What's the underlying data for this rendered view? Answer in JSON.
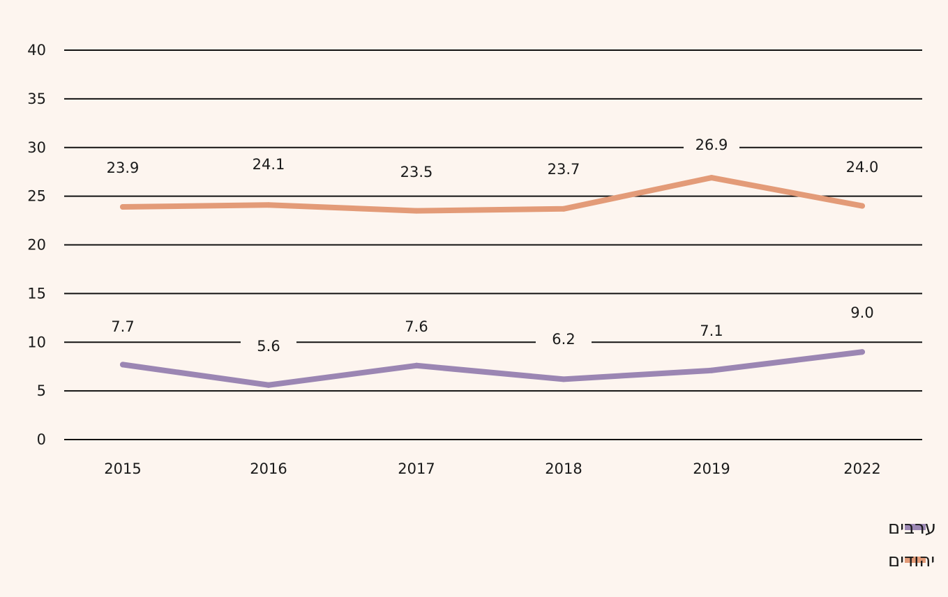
{
  "chart_data": {
    "type": "line",
    "categories": [
      "2015",
      "2016",
      "2017",
      "2018",
      "2019",
      "2022"
    ],
    "y_ticks": [
      "0",
      "5",
      "10",
      "15",
      "20",
      "25",
      "30",
      "35",
      "40"
    ],
    "ylim": [
      0,
      40
    ],
    "grid": true,
    "legend_position": "bottom-right",
    "series": [
      {
        "name": "יהודים",
        "color": "#e39b78",
        "values": [
          23.9,
          24.1,
          23.5,
          23.7,
          26.9,
          24.0
        ],
        "labels": [
          "23.9",
          "24.1",
          "23.5",
          "23.7",
          "26.9",
          "24.0"
        ]
      },
      {
        "name": "ערבים",
        "color": "#9b86b3",
        "values": [
          7.7,
          5.6,
          7.6,
          6.2,
          7.1,
          9.0
        ],
        "labels": [
          "7.7",
          "5.6",
          "7.6",
          "6.2",
          "7.1",
          "9.0"
        ]
      }
    ],
    "legend_order": [
      "ערבים",
      "יהודים"
    ]
  }
}
